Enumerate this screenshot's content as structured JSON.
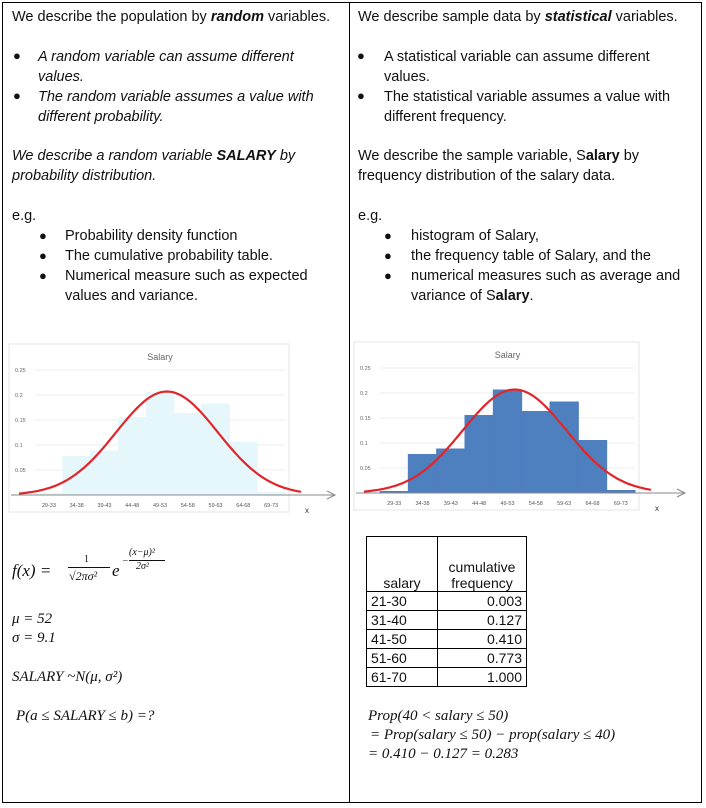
{
  "left": {
    "intro": {
      "pre": "We describe the population by ",
      "em": "random",
      "post": " variables."
    },
    "bullets": [
      {
        "line1": "A random variable can assume different",
        "line2": "values."
      },
      {
        "line1": "The random variable assumes a value with",
        "line2": "different probability."
      }
    ],
    "describe": {
      "pre": "We describe a random variable ",
      "em": "SALARY",
      "post": " by",
      "line2": "probability distribution."
    },
    "eg": "e.g.",
    "eg_items": [
      {
        "line1": "Probability density function",
        "line2": ""
      },
      {
        "line1": "The cumulative probability table.",
        "line2": ""
      },
      {
        "line1": "Numerical measure such as expected",
        "line2": "values and variance."
      }
    ],
    "formula": {
      "lhs": "f(x) = ",
      "num": "1",
      "den": "√2πσ²",
      "base": "e",
      "exp_num": "(x−μ)²",
      "exp_den": "2σ²",
      "exp_sign": "−"
    },
    "mu": "μ = 52",
    "sigma": "σ = 9.1",
    "dist": "SALARY ~N(μ, σ²)",
    "prob": "P(a ≤ SALARY ≤ b) =?"
  },
  "right": {
    "intro": {
      "pre": "We describe sample data by ",
      "em": "statistical",
      "post": " variables."
    },
    "bullets": [
      {
        "line1": "A statistical variable can assume different",
        "line2": "values."
      },
      {
        "line1": "The statistical variable assumes a value with",
        "line2": "different frequency."
      }
    ],
    "describe": {
      "pre": "We describe the sample variable, S",
      "em": "alary",
      "post": " by",
      "line2": "frequency distribution of the salary data."
    },
    "eg": "e.g.",
    "eg_items": [
      {
        "line1": "histogram of Salary,",
        "line2": "",
        "em2": ""
      },
      {
        "line1": "the frequency table of Salary, and the",
        "line2": "",
        "em2": ""
      },
      {
        "line1": "numerical measures such as average and",
        "line2": "variance of S",
        "em2": "alary",
        "post2": "."
      }
    ],
    "table": {
      "headers": [
        "salary",
        "cumulative frequency"
      ],
      "rows": [
        [
          "21-30",
          "0.003"
        ],
        [
          "31-40",
          "0.127"
        ],
        [
          "41-50",
          "0.410"
        ],
        [
          "51-60",
          "0.773"
        ],
        [
          "61-70",
          "1.000"
        ]
      ]
    },
    "calc": {
      "line1": "Prop(40 < salary ≤ 50)",
      "line2": "= Prop(salary ≤ 50) − prop(salary ≤ 40)",
      "line3": "=  0.410 − 0.127 = 0.283"
    }
  },
  "chart_data": [
    {
      "type": "bar",
      "title": "Salary",
      "categories": [
        "29-33",
        "34-38",
        "39-43",
        "44-48",
        "49-53",
        "54-58",
        "59-63",
        "64-68",
        "69-73"
      ],
      "values": [
        0.003,
        0.077,
        0.088,
        0.155,
        0.206,
        0.163,
        0.182,
        0.105,
        0.005
      ],
      "yticks": [
        0.05,
        0.1,
        0.15,
        0.2,
        0.25
      ],
      "ylim": [
        0,
        0.25
      ],
      "xlabel": "x",
      "curve": {
        "mu": 52,
        "sigma": 9.1
      },
      "bar_color": "#e6f7fb",
      "curve_color": "#e0262b"
    },
    {
      "type": "bar",
      "title": "Salary",
      "categories": [
        "29-33",
        "34-38",
        "39-43",
        "44-48",
        "49-53",
        "54-58",
        "59-63",
        "64-68",
        "69-73"
      ],
      "values": [
        0.003,
        0.077,
        0.088,
        0.155,
        0.206,
        0.163,
        0.182,
        0.105,
        0.005
      ],
      "yticks": [
        0.05,
        0.1,
        0.15,
        0.2,
        0.25
      ],
      "ylim": [
        0,
        0.25
      ],
      "xlabel": "x",
      "curve": {
        "mu": 52,
        "sigma": 9.1
      },
      "bar_color": "#4e7fbf",
      "curve_color": "#e0262b"
    }
  ]
}
